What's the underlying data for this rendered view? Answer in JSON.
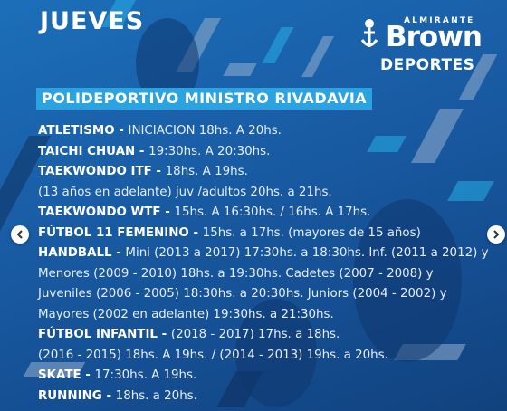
{
  "poster": {
    "day": "JUEVES",
    "logo": {
      "top": "ALMIRANTE",
      "middle": "Brown",
      "bottom": "DEPORTES"
    },
    "venue": "POLIDEPORTIVO MINISTRO RIVADAVIA",
    "lines": [
      {
        "label": "ATLETISMO - ",
        "text": "INICIACION 18hs. A 20hs."
      },
      {
        "label": "TAICHI CHUAN - ",
        "text": " 19:30hs. A 20:30hs."
      },
      {
        "label": "TAEKWONDO ITF - ",
        "text": "18hs. A 19hs."
      },
      {
        "label": "",
        "text": "(13 años en adelante) juv /adultos 20hs. a 21hs."
      },
      {
        "label": "TAEKWONDO  WTF - ",
        "text": "15hs. A 16:30hs. / 16hs. A 17hs."
      },
      {
        "label": "FÚTBOL 11 FEMENINO - ",
        "text": "15hs. a 17hs. (mayores de 15 años)"
      },
      {
        "label": "HANDBALL - ",
        "text": "Mini (2013 a 2017) 17:30hs. a 18:30hs. Inf. (2011 a 2012) y"
      },
      {
        "label": "",
        "text": "Menores (2009 - 2010) 18hs. a  19:30hs.  Cadetes (2007 - 2008) y"
      },
      {
        "label": "",
        "text": "Juveniles (2006 - 2005) 18:30hs. a 20:30hs. Juniors (2004 - 2002) y"
      },
      {
        "label": "",
        "text": "Mayores (2002 en adelante) 19:30hs. a 21:30hs."
      },
      {
        "label": "FÚTBOL INFANTIL - ",
        "text": "(2018 - 2017) 17hs. a 18hs."
      },
      {
        "label": "",
        "text": "(2016 - 2015) 18hs. A 19hs. / (2014 - 2013) 19hs. a 20hs."
      },
      {
        "label": "SKATE - ",
        "text": "17:30hs. A 19hs."
      },
      {
        "label": "RUNNING - ",
        "text": "18hs. a 20hs."
      }
    ]
  },
  "carousel": {
    "prev_icon": "chevron-left-icon",
    "next_icon": "chevron-right-icon"
  },
  "colors": {
    "background": "#1a5fa8",
    "venue_band": "#2aa3e0",
    "text": "#ffffff"
  }
}
